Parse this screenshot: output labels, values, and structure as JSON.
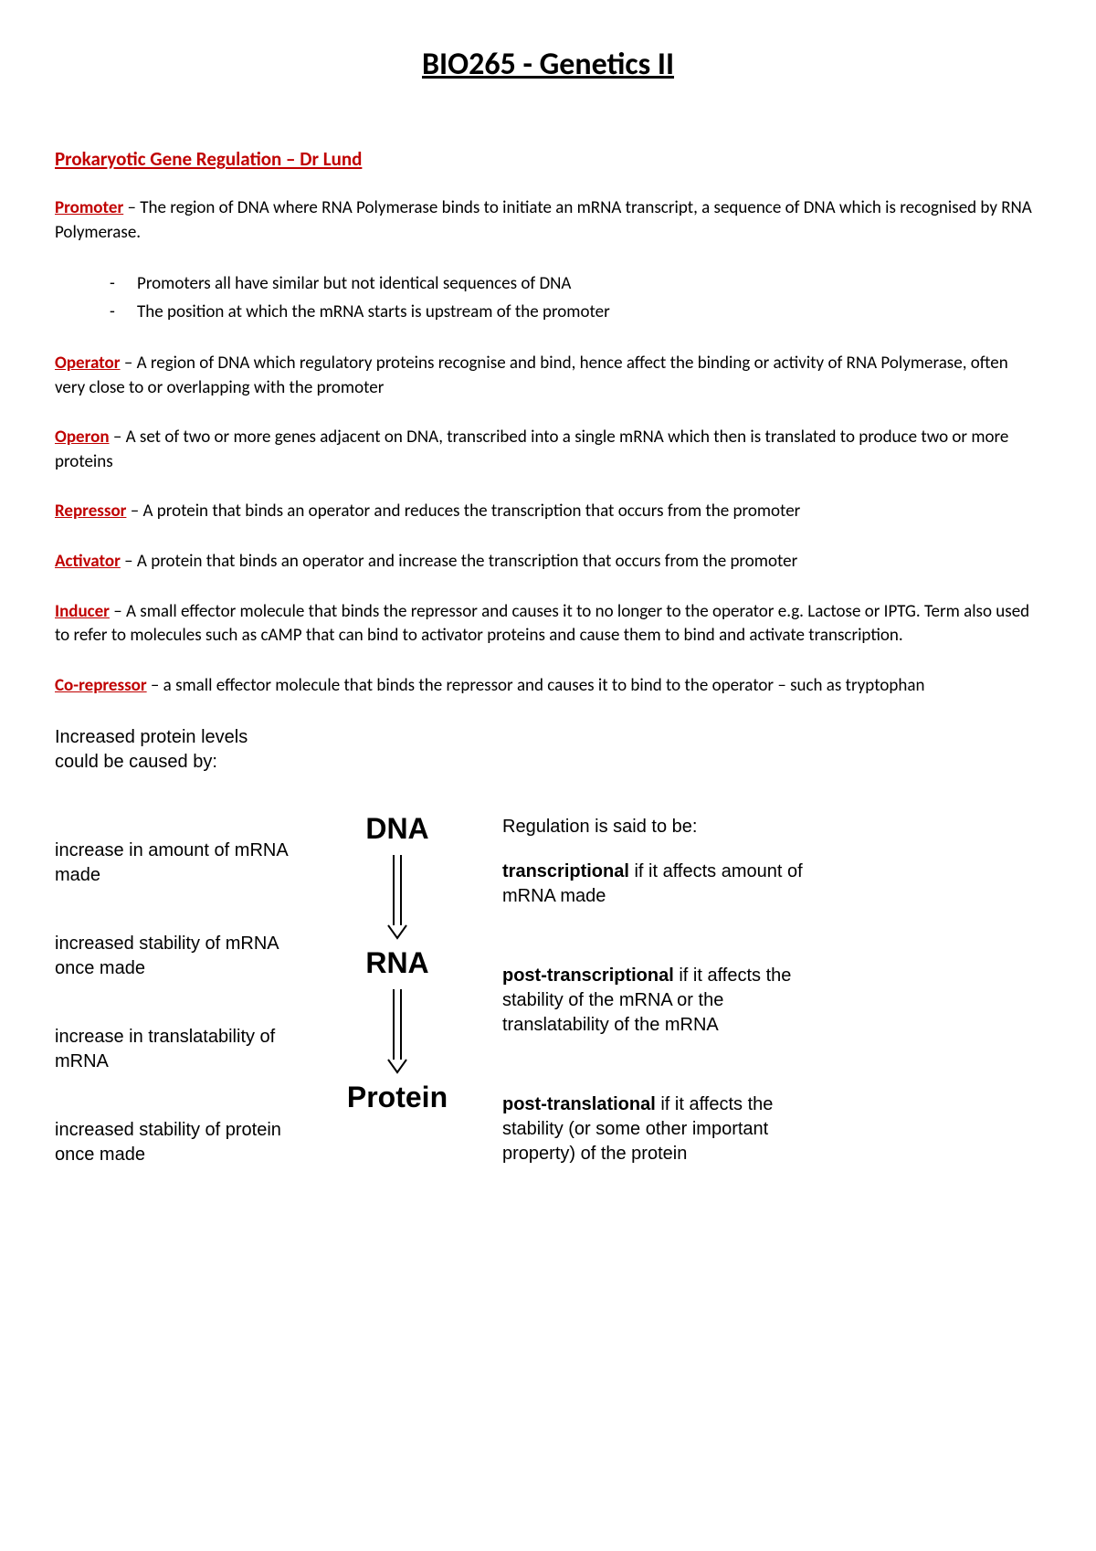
{
  "title": "BIO265 - Genetics II",
  "section_heading": "Prokaryotic Gene Regulation – Dr Lund",
  "colors": {
    "accent": "#c00000",
    "text": "#000000",
    "background": "#ffffff"
  },
  "definitions": [
    {
      "term": "Promoter",
      "text": " – The region of DNA where RNA Polymerase binds to initiate an mRNA transcript, a sequence of DNA which is recognised by RNA Polymerase.",
      "bullets": [
        "Promoters all have similar but not identical sequences of DNA",
        "The position at which the mRNA starts is upstream of the promoter"
      ]
    },
    {
      "term": "Operator",
      "text": " – A region of DNA which regulatory proteins recognise and bind, hence affect the binding or activity of RNA Polymerase, often very close to or overlapping with the promoter"
    },
    {
      "term": "Operon",
      "text": " – A set of two or more genes adjacent on DNA, transcribed into a single mRNA which then is translated to produce two or more proteins"
    },
    {
      "term": "Repressor",
      "text": " – A protein that binds an operator and reduces the transcription that occurs from the promoter"
    },
    {
      "term": "Activator",
      "text": " – A protein that binds an operator and increase the transcription that occurs from the promoter"
    },
    {
      "term": "Inducer",
      "text": " – A small effector molecule that binds the repressor and causes it to no longer to the operator e.g. Lactose or IPTG. Term also used to refer to molecules such as cAMP that can bind to activator proteins and cause them to bind and activate transcription."
    },
    {
      "term": "Co-repressor",
      "text": " – a small effector molecule that binds the repressor and causes it to bind to the operator – such as tryptophan"
    }
  ],
  "diagram": {
    "left": {
      "intro": "Increased protein levels could be caused by:",
      "items": [
        "increase in amount of mRNA made",
        "increased stability of mRNA once made",
        "increase in translatability of mRNA",
        "increased stability of protein once made"
      ]
    },
    "center": {
      "nodes": [
        "DNA",
        "RNA",
        "Protein"
      ]
    },
    "right": {
      "intro": "Regulation is said to be:",
      "items": [
        {
          "lead": "transcriptional",
          "rest": " if it affects amount of mRNA made"
        },
        {
          "lead": "post-transcriptional",
          "rest": " if it affects the stability of the mRNA or the translatability of the mRNA"
        },
        {
          "lead": "post-translational",
          "rest": " if it affects the stability (or some other important property) of the protein"
        }
      ]
    },
    "arrow": {
      "stroke": "#000000",
      "stroke_width": 2,
      "length": 100,
      "head_size": 10
    }
  }
}
